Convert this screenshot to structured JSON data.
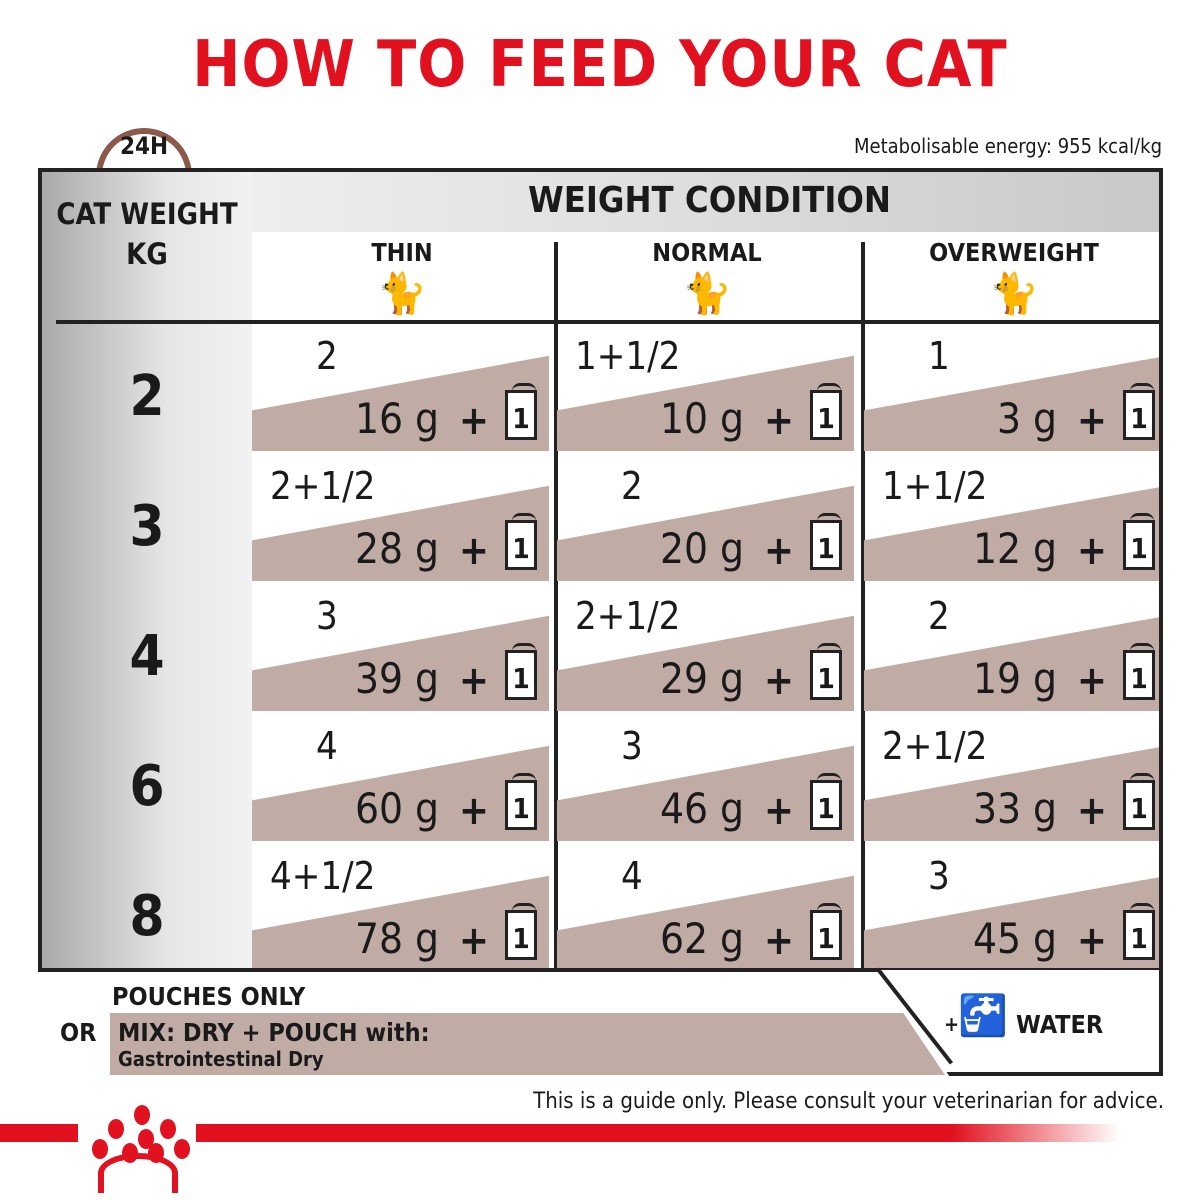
{
  "title": "HOW TO FEED YOUR CAT",
  "clock_label": "24H",
  "energy": "Metabolisable energy: 955 kcal/kg",
  "table": {
    "cat_weight_header": "CAT WEIGHT KG",
    "weight_condition": "WEIGHT CONDITION",
    "columns": [
      "THIN",
      "NORMAL",
      "OVERWEIGHT"
    ],
    "cell_color": "#c0aca5",
    "pouch_count": "1",
    "plus": "+",
    "rows": [
      {
        "kg": "2",
        "cells": [
          {
            "top": "2",
            "grams": "16 g"
          },
          {
            "top": "1+1/2",
            "grams": "10 g"
          },
          {
            "top": "1",
            "grams": "3 g"
          }
        ]
      },
      {
        "kg": "3",
        "cells": [
          {
            "top": "2+1/2",
            "grams": "28 g"
          },
          {
            "top": "2",
            "grams": "20 g"
          },
          {
            "top": "1+1/2",
            "grams": "12 g"
          }
        ]
      },
      {
        "kg": "4",
        "cells": [
          {
            "top": "3",
            "grams": "39 g"
          },
          {
            "top": "2+1/2",
            "grams": "29 g"
          },
          {
            "top": "2",
            "grams": "19 g"
          }
        ]
      },
      {
        "kg": "6",
        "cells": [
          {
            "top": "4",
            "grams": "60 g"
          },
          {
            "top": "3",
            "grams": "46 g"
          },
          {
            "top": "2+1/2",
            "grams": "33 g"
          }
        ]
      },
      {
        "kg": "8",
        "cells": [
          {
            "top": "4+1/2",
            "grams": "78 g"
          },
          {
            "top": "4",
            "grams": "62 g"
          },
          {
            "top": "3",
            "grams": "45 g"
          }
        ]
      }
    ]
  },
  "footer": {
    "pouches_only": "POUCHES ONLY",
    "or": "OR",
    "mix": "MIX: DRY + POUCH with:",
    "mix_product": "Gastrointestinal Dry",
    "water_plus": "+",
    "water": "WATER",
    "guide": "This is a guide only. Please consult your veterinarian for advice."
  },
  "brand_color": "#e1111f",
  "icons": [
    "clock-icon",
    "cat-icon",
    "pouch-icon",
    "water-tap-icon",
    "royal-canin-crown-logo"
  ]
}
